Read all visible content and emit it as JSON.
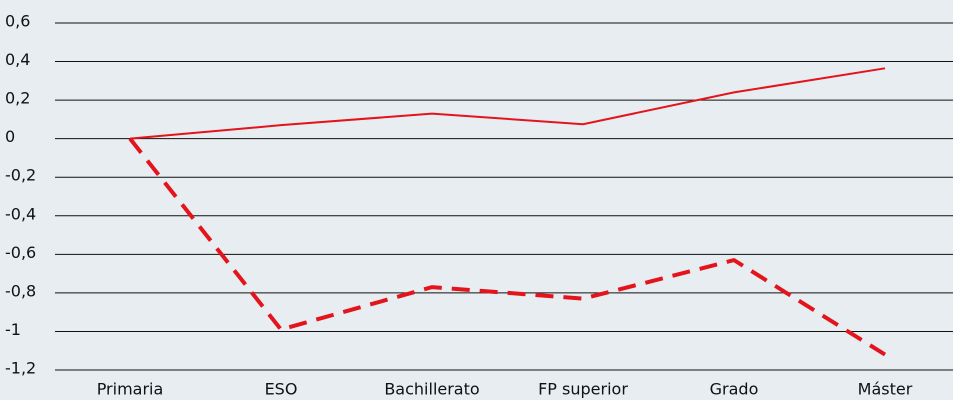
{
  "chart_data": {
    "type": "line",
    "categories": [
      "Primaria",
      "ESO",
      "Bachillerato",
      "FP superior",
      "Grado",
      "Máster"
    ],
    "series": [
      {
        "color": "#e3141b",
        "style": "solid",
        "values": [
          0,
          0.07,
          0.13,
          0.075,
          0.24,
          0.365
        ]
      },
      {
        "color": "#e3141b",
        "style": "dashed",
        "values": [
          0,
          -0.99,
          -0.77,
          -0.83,
          -0.63,
          -1.12
        ]
      }
    ],
    "ylim": [
      -1.2,
      0.6
    ],
    "yticks": [
      {
        "value": 0.6,
        "label": "0,6"
      },
      {
        "value": 0.4,
        "label": "0,4"
      },
      {
        "value": 0.2,
        "label": "0,2"
      },
      0,
      {
        "value": -0.2,
        "label": "-0,2"
      },
      {
        "value": -0.4,
        "label": "-0,4"
      },
      {
        "value": -0.6,
        "label": "-0,6"
      },
      {
        "value": -0.8,
        "label": "-0,8"
      },
      -1,
      {
        "value": -1.2,
        "label": "-1,2"
      }
    ],
    "grid": true
  }
}
